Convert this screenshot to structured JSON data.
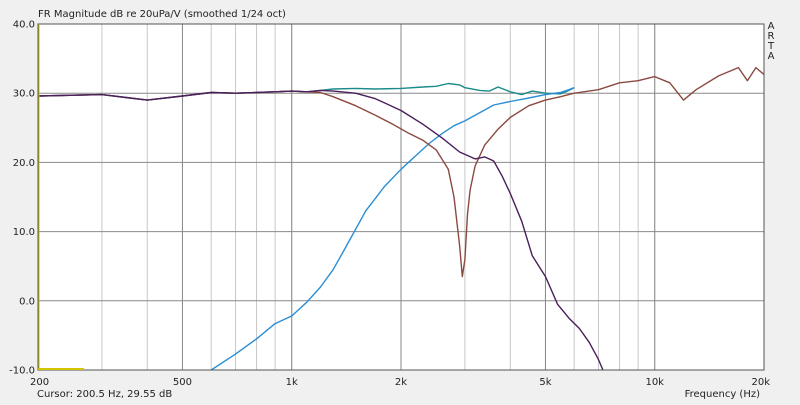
{
  "window": {
    "title": "FR Magnitude dB re 20uPa/V (smoothed 1/24 oct)",
    "brand": [
      "A",
      "R",
      "T",
      "A"
    ],
    "status": "Cursor: 200.5 Hz, 29.55 dB",
    "xlabel": "Frequency (Hz)"
  },
  "chart_data": {
    "type": "line",
    "title": "FR Magnitude dB re 20uPa/V (smoothed 1/24 oct)",
    "xlabel": "Frequency (Hz)",
    "ylabel": "",
    "xscale": "log",
    "xlim": [
      200,
      20000
    ],
    "ylim": [
      -10,
      40
    ],
    "grid": true,
    "xticks": [
      {
        "value": 200,
        "label": "200"
      },
      {
        "value": 500,
        "label": "500"
      },
      {
        "value": 1000,
        "label": "1k"
      },
      {
        "value": 2000,
        "label": "2k"
      },
      {
        "value": 5000,
        "label": "5k"
      },
      {
        "value": 10000,
        "label": "10k"
      },
      {
        "value": 20000,
        "label": "20k"
      }
    ],
    "yticks": [
      {
        "value": 40,
        "label": "40.0"
      },
      {
        "value": 30,
        "label": "30.0"
      },
      {
        "value": 20,
        "label": "20.0"
      },
      {
        "value": 10,
        "label": "10.0"
      },
      {
        "value": 0,
        "label": "0.0"
      },
      {
        "value": -10,
        "label": "-10.0"
      }
    ],
    "series": [
      {
        "color": "#1a8a8a",
        "x": [
          200,
          300,
          400,
          500,
          600,
          700,
          800,
          900,
          1000,
          1100,
          1200,
          1300,
          1500,
          1700,
          2000,
          2300,
          2500,
          2700,
          2900,
          3000,
          3300,
          3500,
          3700,
          4000,
          4300,
          4600,
          5000,
          5500,
          5800,
          6000
        ],
        "y": [
          29.6,
          29.8,
          29.0,
          29.6,
          30.1,
          30.0,
          30.1,
          30.2,
          30.3,
          30.2,
          30.4,
          30.6,
          30.7,
          30.6,
          30.7,
          30.9,
          31.0,
          31.4,
          31.2,
          30.8,
          30.4,
          30.3,
          30.9,
          30.2,
          29.8,
          30.3,
          30.0,
          29.9,
          30.4,
          30.8
        ]
      },
      {
        "color": "#2a8ed6",
        "x": [
          600,
          700,
          800,
          900,
          1000,
          1100,
          1200,
          1300,
          1400,
          1600,
          1800,
          2000,
          2200,
          2400,
          2600,
          2800,
          3000,
          3300,
          3600,
          4000,
          4500,
          5000,
          5500,
          5800,
          6000
        ],
        "y": [
          -10.0,
          -7.7,
          -5.5,
          -3.3,
          -2.2,
          -0.2,
          2.0,
          4.5,
          7.5,
          13.0,
          16.5,
          19.0,
          21.0,
          22.8,
          24.2,
          25.3,
          26.0,
          27.2,
          28.3,
          28.8,
          29.3,
          29.8,
          30.1,
          30.5,
          30.8
        ]
      },
      {
        "color": "#8a4a40",
        "x": [
          200,
          300,
          400,
          500,
          600,
          700,
          800,
          900,
          1000,
          1100,
          1200,
          1300,
          1500,
          1700,
          1900,
          2100,
          2300,
          2500,
          2700,
          2800,
          2900,
          2950,
          3000,
          3050,
          3100,
          3200,
          3400,
          3700,
          4000,
          4500,
          5000,
          5500,
          6000,
          7000,
          8000,
          9000,
          10000,
          11000,
          12000,
          13000,
          15000,
          17000,
          18000,
          19000,
          20000
        ],
        "y": [
          29.6,
          29.8,
          29.0,
          29.6,
          30.1,
          30.0,
          30.1,
          30.2,
          30.3,
          30.2,
          30.1,
          29.5,
          28.2,
          26.8,
          25.5,
          24.2,
          23.2,
          21.8,
          19.0,
          15.0,
          8.0,
          3.5,
          6.0,
          12.5,
          16.0,
          19.5,
          22.5,
          24.8,
          26.5,
          28.2,
          29.0,
          29.5,
          30.0,
          30.5,
          31.5,
          31.8,
          32.4,
          31.5,
          29.0,
          30.5,
          32.5,
          33.7,
          31.8,
          33.7,
          32.7
        ]
      },
      {
        "color": "#4a1e5a",
        "x": [
          200,
          300,
          400,
          500,
          600,
          700,
          800,
          900,
          1000,
          1100,
          1200,
          1300,
          1500,
          1700,
          2000,
          2300,
          2600,
          2900,
          3200,
          3400,
          3600,
          3800,
          4000,
          4300,
          4600,
          5000,
          5400,
          5800,
          6200,
          6600,
          7000,
          7200
        ],
        "y": [
          29.6,
          29.8,
          29.0,
          29.6,
          30.1,
          30.0,
          30.1,
          30.2,
          30.3,
          30.2,
          30.4,
          30.3,
          30.0,
          29.2,
          27.5,
          25.5,
          23.5,
          21.5,
          20.5,
          20.8,
          20.2,
          18.0,
          15.5,
          11.5,
          6.5,
          3.5,
          -0.5,
          -2.5,
          -4.0,
          -6.0,
          -8.5,
          -10.0
        ]
      }
    ]
  }
}
